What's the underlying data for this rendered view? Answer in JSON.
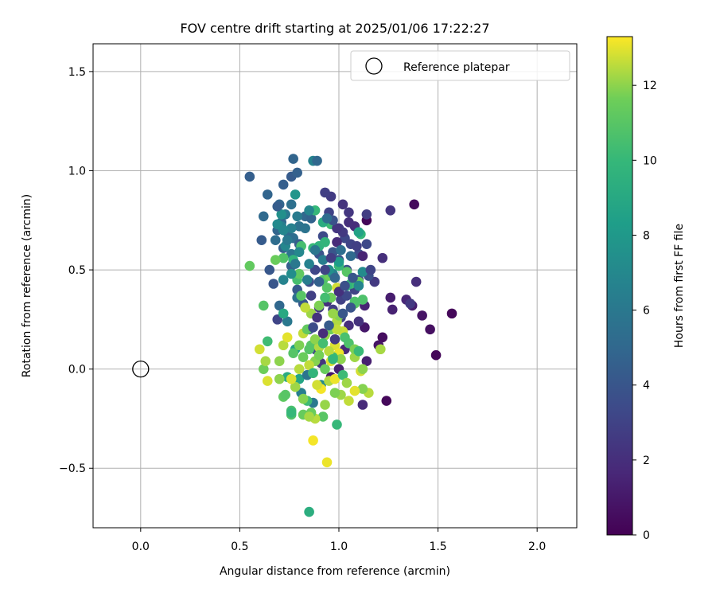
{
  "chart_data": {
    "type": "scatter",
    "title": "FOV centre drift starting at 2025/01/06 17:22:27",
    "xlabel": "Angular distance from reference (arcmin)",
    "ylabel": "Rotation from reference (arcmin)",
    "xlim": [
      -0.24,
      2.2
    ],
    "ylim": [
      -0.8,
      1.64
    ],
    "x_ticks": [
      0.0,
      0.5,
      1.0,
      1.5,
      2.0
    ],
    "x_tick_labels": [
      "0.0",
      "0.5",
      "1.0",
      "1.5",
      "2.0"
    ],
    "y_ticks": [
      -0.5,
      0.0,
      0.5,
      1.0,
      1.5
    ],
    "y_tick_labels": [
      "−0.5",
      "0.0",
      "0.5",
      "1.0",
      "1.5"
    ],
    "grid": true,
    "legend": {
      "placement": "top-right",
      "entries": [
        "Reference platepar"
      ]
    },
    "reference_point": {
      "x": 0.0,
      "y": 0.0,
      "label": "Reference platepar"
    },
    "colorbar": {
      "label": "Hours from first FF file",
      "range": [
        0,
        13.3
      ],
      "ticks": [
        0,
        2,
        4,
        6,
        8,
        10,
        12
      ],
      "tick_labels": [
        "0",
        "2",
        "4",
        "6",
        "8",
        "10",
        "12"
      ],
      "colormap": "viridis"
    },
    "points": [
      [
        1.38,
        0.83,
        0.4
      ],
      [
        1.14,
        0.75,
        0.2
      ],
      [
        1.57,
        0.28,
        0.3
      ],
      [
        1.49,
        0.07,
        0.2
      ],
      [
        1.46,
        0.2,
        0.6
      ],
      [
        1.42,
        0.27,
        0.8
      ],
      [
        1.37,
        0.32,
        1.2
      ],
      [
        1.34,
        0.35,
        1.6
      ],
      [
        1.27,
        0.3,
        1.4
      ],
      [
        1.26,
        0.36,
        1.2
      ],
      [
        1.24,
        -0.16,
        0.3
      ],
      [
        1.22,
        0.16,
        0.5
      ],
      [
        1.2,
        0.12,
        0.8
      ],
      [
        1.13,
        0.21,
        1.0
      ],
      [
        1.13,
        0.32,
        1.5
      ],
      [
        1.14,
        0.04,
        1.3
      ],
      [
        1.12,
        -0.18,
        1.8
      ],
      [
        1.1,
        0.24,
        2.2
      ],
      [
        1.39,
        0.44,
        2.0
      ],
      [
        1.36,
        0.33,
        2.5
      ],
      [
        1.26,
        0.8,
        2.3
      ],
      [
        1.22,
        0.56,
        2.0
      ],
      [
        1.18,
        0.44,
        2.5
      ],
      [
        1.14,
        0.78,
        2.7
      ],
      [
        1.08,
        0.72,
        1.9
      ],
      [
        1.05,
        0.79,
        2.4
      ],
      [
        1.02,
        0.83,
        2.2
      ],
      [
        0.96,
        0.87,
        2.6
      ],
      [
        0.93,
        0.89,
        2.8
      ],
      [
        0.95,
        0.79,
        3.0
      ],
      [
        1.0,
        0.71,
        2.4
      ],
      [
        1.03,
        0.66,
        3.2
      ],
      [
        1.06,
        0.63,
        3.0
      ],
      [
        1.1,
        0.58,
        3.5
      ],
      [
        1.14,
        0.63,
        3.3
      ],
      [
        1.15,
        0.47,
        3.7
      ],
      [
        1.1,
        0.45,
        3.4
      ],
      [
        1.08,
        0.4,
        3.0
      ],
      [
        1.04,
        0.5,
        3.6
      ],
      [
        1.0,
        0.55,
        3.8
      ],
      [
        0.97,
        0.59,
        4.0
      ],
      [
        0.92,
        0.67,
        3.4
      ],
      [
        0.9,
        0.58,
        3.9
      ],
      [
        0.88,
        0.5,
        3.2
      ],
      [
        0.85,
        0.44,
        3.6
      ],
      [
        0.86,
        0.37,
        2.8
      ],
      [
        0.9,
        0.31,
        2.5
      ],
      [
        0.94,
        0.34,
        2.1
      ],
      [
        0.97,
        0.3,
        2.7
      ],
      [
        1.01,
        0.26,
        3.0
      ],
      [
        1.05,
        0.22,
        2.0
      ],
      [
        1.03,
        0.1,
        1.7
      ],
      [
        1.0,
        0.0,
        1.4
      ],
      [
        0.96,
        -0.04,
        1.0
      ],
      [
        0.91,
        0.03,
        2.3
      ],
      [
        0.88,
        0.1,
        3.2
      ],
      [
        0.85,
        0.2,
        3.8
      ],
      [
        0.82,
        0.33,
        4.0
      ],
      [
        0.79,
        0.4,
        4.2
      ],
      [
        0.76,
        0.52,
        4.5
      ],
      [
        0.72,
        0.61,
        4.6
      ],
      [
        0.69,
        0.7,
        4.8
      ],
      [
        0.71,
        0.74,
        5.0
      ],
      [
        0.74,
        0.69,
        5.2
      ],
      [
        0.77,
        0.66,
        5.4
      ],
      [
        0.8,
        0.72,
        5.6
      ],
      [
        0.83,
        0.77,
        5.0
      ],
      [
        0.86,
        0.76,
        4.7
      ],
      [
        0.8,
        0.63,
        4.4
      ],
      [
        0.76,
        0.58,
        5.8
      ],
      [
        0.73,
        0.78,
        6.0
      ],
      [
        0.7,
        0.83,
        4.9
      ],
      [
        0.68,
        0.65,
        5.3
      ],
      [
        0.65,
        0.5,
        4.1
      ],
      [
        0.67,
        0.43,
        4.0
      ],
      [
        0.61,
        0.65,
        4.3
      ],
      [
        0.55,
        0.97,
        4.5
      ],
      [
        0.64,
        0.88,
        4.8
      ],
      [
        0.72,
        0.93,
        4.5
      ],
      [
        0.76,
        0.97,
        4.3
      ],
      [
        0.79,
        0.99,
        4.6
      ],
      [
        0.77,
        1.06,
        4.8
      ],
      [
        0.87,
        1.05,
        6.7
      ],
      [
        0.89,
        1.05,
        5.0
      ],
      [
        0.78,
        0.88,
        7.8
      ],
      [
        0.71,
        0.78,
        7.5
      ],
      [
        0.73,
        0.62,
        6.9
      ],
      [
        0.84,
        0.45,
        6.3
      ],
      [
        0.79,
        0.36,
        5.5
      ],
      [
        0.74,
        0.24,
        6.0
      ],
      [
        0.7,
        0.32,
        5.0
      ],
      [
        0.69,
        0.25,
        3.1
      ],
      [
        0.72,
        0.28,
        9.0
      ],
      [
        0.78,
        0.1,
        8.5
      ],
      [
        0.74,
        -0.04,
        9.2
      ],
      [
        0.8,
        -0.05,
        8.8
      ],
      [
        0.84,
        -0.03,
        5.8
      ],
      [
        0.81,
        -0.12,
        6.4
      ],
      [
        0.87,
        -0.17,
        6.1
      ],
      [
        0.91,
        -0.08,
        7.1
      ],
      [
        0.85,
        -0.72,
        9.3
      ],
      [
        0.99,
        -0.28,
        10.0
      ],
      [
        0.87,
        -0.36,
        13.2
      ],
      [
        0.94,
        -0.47,
        13.1
      ],
      [
        0.92,
        -0.24,
        11.0
      ],
      [
        0.88,
        -0.25,
        12.5
      ],
      [
        0.86,
        -0.22,
        11.5
      ],
      [
        0.76,
        -0.21,
        10.6
      ],
      [
        0.76,
        -0.23,
        10.8
      ],
      [
        0.72,
        -0.14,
        11.2
      ],
      [
        0.7,
        -0.05,
        12.0
      ],
      [
        0.64,
        -0.06,
        12.9
      ],
      [
        0.62,
        0.0,
        11.6
      ],
      [
        0.63,
        0.04,
        12.3
      ],
      [
        0.6,
        0.1,
        12.8
      ],
      [
        0.64,
        0.14,
        10.3
      ],
      [
        0.7,
        0.04,
        12.0
      ],
      [
        0.72,
        0.12,
        12.5
      ],
      [
        0.74,
        0.16,
        13.0
      ],
      [
        0.77,
        0.08,
        10.9
      ],
      [
        0.8,
        0.12,
        11.8
      ],
      [
        0.82,
        0.18,
        12.6
      ],
      [
        0.84,
        0.2,
        11.3
      ],
      [
        0.86,
        0.12,
        11.0
      ],
      [
        0.88,
        0.04,
        11.9
      ],
      [
        0.9,
        0.11,
        12.4
      ],
      [
        0.93,
        0.17,
        12.1
      ],
      [
        0.96,
        0.2,
        11.6
      ],
      [
        0.98,
        0.12,
        12.9
      ],
      [
        1.0,
        0.08,
        13.1
      ],
      [
        1.02,
        0.19,
        12.7
      ],
      [
        1.05,
        0.13,
        10.7
      ],
      [
        1.08,
        0.06,
        12.2
      ],
      [
        1.1,
        0.09,
        11.4
      ],
      [
        1.11,
        -0.01,
        12.8
      ],
      [
        1.12,
        0.0,
        12.0
      ],
      [
        1.15,
        -0.12,
        12.5
      ],
      [
        1.21,
        0.1,
        12.3
      ],
      [
        1.12,
        -0.1,
        11.9
      ],
      [
        1.08,
        -0.11,
        13.0
      ],
      [
        1.05,
        -0.16,
        12.6
      ],
      [
        1.01,
        -0.13,
        12.2
      ],
      [
        0.98,
        -0.12,
        11.8
      ],
      [
        0.95,
        -0.06,
        12.4
      ],
      [
        0.93,
        -0.18,
        12.1
      ],
      [
        0.91,
        -0.1,
        13.2
      ],
      [
        0.89,
        -0.08,
        12.8
      ],
      [
        0.87,
        -0.02,
        13.0
      ],
      [
        0.85,
        0.02,
        12.6
      ],
      [
        0.93,
        0.0,
        11.4
      ],
      [
        0.96,
        0.04,
        12.9
      ],
      [
        0.98,
        -0.05,
        13.1
      ],
      [
        1.01,
        0.05,
        12.0
      ],
      [
        0.99,
        0.24,
        12.4
      ],
      [
        1.0,
        0.27,
        11.9
      ],
      [
        1.08,
        0.33,
        11.1
      ],
      [
        1.12,
        0.35,
        10.7
      ],
      [
        1.1,
        0.44,
        11.4
      ],
      [
        1.06,
        0.43,
        10.2
      ],
      [
        1.04,
        0.49,
        11.0
      ],
      [
        1.0,
        0.52,
        10.1
      ],
      [
        0.99,
        0.41,
        12.8
      ],
      [
        0.96,
        0.36,
        11.6
      ],
      [
        0.93,
        0.36,
        10.4
      ],
      [
        0.9,
        0.32,
        11.8
      ],
      [
        0.86,
        0.28,
        12.2
      ],
      [
        0.83,
        0.31,
        12.6
      ],
      [
        0.81,
        0.37,
        11.0
      ],
      [
        0.79,
        0.45,
        10.5
      ],
      [
        0.8,
        0.48,
        11.2
      ],
      [
        0.77,
        0.55,
        9.7
      ],
      [
        0.72,
        0.56,
        10.8
      ],
      [
        0.68,
        0.55,
        11.5
      ],
      [
        0.62,
        0.32,
        10.9
      ],
      [
        0.55,
        0.52,
        11.3
      ],
      [
        0.81,
        0.62,
        10.5
      ],
      [
        0.87,
        0.61,
        10.0
      ],
      [
        0.9,
        0.62,
        9.6
      ],
      [
        0.93,
        0.64,
        9.8
      ],
      [
        0.96,
        0.73,
        10.3
      ],
      [
        0.92,
        0.74,
        9.2
      ],
      [
        0.88,
        0.8,
        10.0
      ],
      [
        0.92,
        0.45,
        10.8
      ],
      [
        0.95,
        0.47,
        11.6
      ],
      [
        0.94,
        0.41,
        10.9
      ],
      [
        0.97,
        0.28,
        12.1
      ],
      [
        0.99,
        0.2,
        12.6
      ],
      [
        1.03,
        0.16,
        10.6
      ],
      [
        0.97,
        0.06,
        10.2
      ],
      [
        0.9,
        0.07,
        11.7
      ],
      [
        0.88,
        0.15,
        12.0
      ],
      [
        0.85,
        0.1,
        10.9
      ],
      [
        0.82,
        0.06,
        11.5
      ],
      [
        0.8,
        0.0,
        12.5
      ],
      [
        0.78,
        -0.09,
        12.2
      ],
      [
        0.76,
        -0.05,
        12.9
      ],
      [
        0.73,
        -0.13,
        11.0
      ],
      [
        0.76,
        -0.22,
        10.0
      ],
      [
        0.82,
        -0.23,
        11.4
      ],
      [
        0.84,
        -0.16,
        10.3
      ],
      [
        0.82,
        -0.15,
        11.9
      ],
      [
        0.85,
        -0.24,
        12.3
      ],
      [
        0.87,
        -0.02,
        9.8
      ],
      [
        0.92,
        0.13,
        10.4
      ],
      [
        0.95,
        0.09,
        12.5
      ],
      [
        0.97,
        0.05,
        9.9
      ],
      [
        1.02,
        -0.03,
        10.2
      ],
      [
        1.08,
        0.1,
        11.8
      ],
      [
        1.1,
        0.09,
        10.1
      ],
      [
        1.04,
        -0.07,
        12.2
      ],
      [
        1.04,
        0.42,
        9.6
      ],
      [
        1.08,
        0.34,
        10.7
      ],
      [
        1.11,
        0.68,
        9.9
      ],
      [
        1.1,
        0.69,
        8.6
      ],
      [
        1.12,
        0.49,
        7.2
      ],
      [
        1.1,
        0.42,
        6.8
      ],
      [
        1.0,
        0.54,
        8.2
      ],
      [
        0.97,
        0.48,
        6.5
      ],
      [
        0.95,
        0.5,
        7.5
      ],
      [
        0.92,
        0.55,
        6.3
      ],
      [
        0.88,
        0.6,
        5.9
      ],
      [
        0.85,
        0.53,
        6.6
      ],
      [
        0.8,
        0.59,
        7.0
      ],
      [
        0.78,
        0.53,
        6.0
      ],
      [
        0.76,
        0.48,
        7.3
      ],
      [
        0.72,
        0.45,
        6.7
      ],
      [
        0.74,
        0.65,
        6.1
      ],
      [
        0.76,
        0.71,
        6.5
      ],
      [
        0.71,
        0.72,
        6.4
      ],
      [
        0.69,
        0.73,
        7.1
      ],
      [
        0.72,
        0.7,
        6.9
      ],
      [
        0.79,
        0.77,
        6.2
      ],
      [
        0.83,
        0.71,
        5.7
      ],
      [
        0.85,
        0.8,
        6.8
      ],
      [
        0.76,
        0.83,
        5.5
      ],
      [
        0.69,
        0.82,
        4.4
      ],
      [
        0.62,
        0.77,
        5.1
      ],
      [
        1.01,
        0.35,
        2.9
      ],
      [
        1.04,
        0.37,
        3.3
      ],
      [
        1.06,
        0.31,
        3.9
      ],
      [
        1.02,
        0.28,
        4.1
      ],
      [
        0.98,
        0.15,
        2.6
      ],
      [
        0.95,
        0.22,
        4.3
      ],
      [
        0.92,
        0.18,
        1.9
      ],
      [
        0.89,
        0.26,
        2.2
      ],
      [
        0.87,
        0.21,
        3.5
      ],
      [
        0.9,
        0.44,
        4.6
      ],
      [
        0.93,
        0.5,
        3.0
      ],
      [
        0.96,
        0.56,
        2.7
      ],
      [
        0.99,
        0.64,
        1.8
      ],
      [
        1.02,
        0.69,
        2.5
      ],
      [
        1.05,
        0.74,
        2.0
      ],
      [
        1.09,
        0.62,
        2.8
      ],
      [
        1.12,
        0.57,
        1.5
      ],
      [
        1.16,
        0.5,
        3.1
      ],
      [
        0.98,
        0.46,
        4.9
      ],
      [
        1.0,
        0.39,
        2.1
      ],
      [
        1.03,
        0.42,
        3.7
      ],
      [
        1.07,
        0.46,
        4.0
      ],
      [
        1.06,
        0.57,
        5.1
      ],
      [
        1.01,
        0.6,
        5.4
      ],
      [
        0.99,
        0.71,
        2.3
      ],
      [
        0.97,
        0.75,
        3.8
      ],
      [
        0.94,
        0.76,
        5.3
      ]
    ]
  }
}
